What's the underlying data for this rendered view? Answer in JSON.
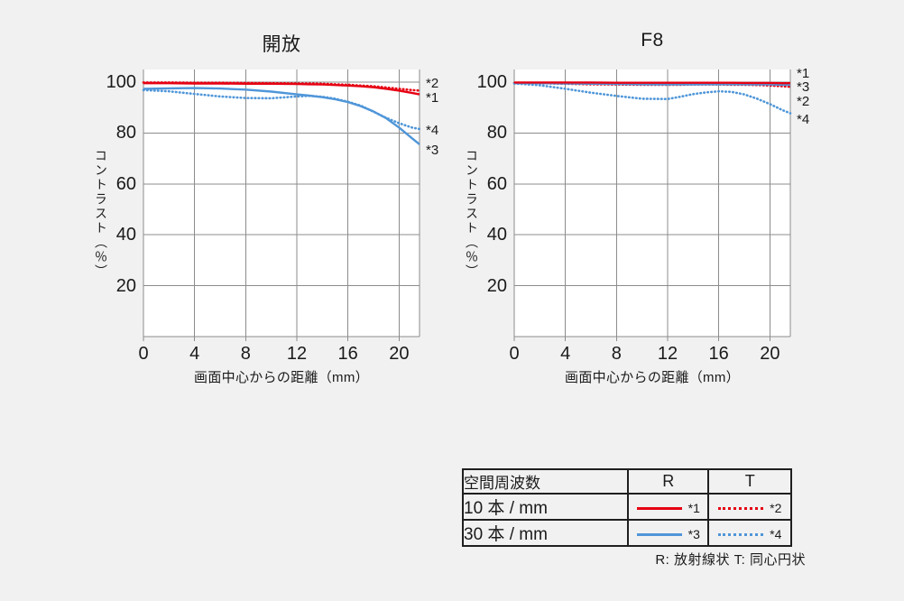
{
  "page": {
    "background": "#f1f1f1",
    "text_color": "#1a1a1a"
  },
  "colors": {
    "red": "#e60012",
    "blue": "#4f96d9",
    "grid": "#8c8c8c",
    "plot_bg": "#ffffff"
  },
  "chart_data": [
    {
      "type": "line",
      "title": "開放",
      "xlabel": "画面中心からの距離（mm）",
      "ylabel": "コントラスト（％）",
      "xlim": [
        0,
        21.6
      ],
      "ylim": [
        0,
        105
      ],
      "x_ticks": [
        0,
        4,
        8,
        12,
        16,
        20
      ],
      "y_ticks": [
        100,
        80,
        60,
        40,
        20
      ],
      "grid": true,
      "legend_position": "none",
      "x": [
        0,
        2,
        4,
        6,
        8,
        10,
        12,
        13,
        14,
        15,
        16,
        17,
        18,
        19,
        20,
        21,
        21.6
      ],
      "series": [
        {
          "label": "*1",
          "name": "R 10本/mm",
          "color": "red",
          "style": "solid",
          "values": [
            99.6,
            99.6,
            99.5,
            99.5,
            99.4,
            99.4,
            99.3,
            99.2,
            99.1,
            98.9,
            98.7,
            98.4,
            98.0,
            97.4,
            96.7,
            95.8,
            95.2
          ]
        },
        {
          "label": "*2",
          "name": "T 10本/mm",
          "color": "red",
          "style": "dotted",
          "values": [
            99.9,
            99.9,
            99.8,
            99.8,
            99.7,
            99.6,
            99.5,
            99.5,
            99.4,
            99.2,
            99.0,
            98.7,
            98.4,
            97.9,
            97.4,
            96.9,
            96.7
          ]
        },
        {
          "label": "*3",
          "name": "R 30本/mm",
          "color": "blue",
          "style": "solid",
          "values": [
            97.4,
            97.6,
            97.7,
            97.5,
            97.1,
            96.3,
            95.2,
            94.7,
            94.1,
            93.3,
            92.2,
            90.6,
            88.5,
            85.8,
            82.2,
            78.0,
            75.6
          ]
        },
        {
          "label": "*4",
          "name": "T 30本/mm",
          "color": "blue",
          "style": "dotted",
          "values": [
            96.9,
            96.4,
            95.4,
            94.4,
            93.8,
            93.7,
            94.4,
            94.6,
            94.3,
            93.5,
            92.3,
            90.8,
            88.4,
            86.0,
            83.9,
            82.2,
            81.6
          ]
        }
      ],
      "right_labels": [
        {
          "text": "*2",
          "v": 99.3
        },
        {
          "text": "*1",
          "v": 93.5
        },
        {
          "text": "*4",
          "v": 80.9
        },
        {
          "text": "*3",
          "v": 73.0
        }
      ]
    },
    {
      "type": "line",
      "title": "F8",
      "xlabel": "画面中心からの距離（mm）",
      "ylabel": "コントラスト（％）",
      "xlim": [
        0,
        21.6
      ],
      "ylim": [
        0,
        105
      ],
      "x_ticks": [
        0,
        4,
        8,
        12,
        16,
        20
      ],
      "y_ticks": [
        100,
        80,
        60,
        40,
        20
      ],
      "grid": true,
      "legend_position": "none",
      "x": [
        0,
        2,
        4,
        6,
        8,
        10,
        12,
        13,
        14,
        15,
        16,
        17,
        18,
        19,
        20,
        21,
        21.6
      ],
      "series": [
        {
          "label": "*2",
          "name": "T 10本/mm",
          "color": "red",
          "style": "dotted",
          "values": [
            99.7,
            99.6,
            99.4,
            99.2,
            99.1,
            99.0,
            99.0,
            99.0,
            99.1,
            99.1,
            99.1,
            99.0,
            99.0,
            98.9,
            98.7,
            98.4,
            98.2
          ]
        },
        {
          "label": "*4",
          "name": "T 30本/mm",
          "color": "blue",
          "style": "dotted",
          "values": [
            99.5,
            98.8,
            97.4,
            95.9,
            94.6,
            93.5,
            93.4,
            94.3,
            95.3,
            96.0,
            96.4,
            96.2,
            95.2,
            93.5,
            91.4,
            89.0,
            87.8
          ]
        },
        {
          "label": "*3",
          "name": "R 30本/mm",
          "color": "blue",
          "style": "solid",
          "values": [
            99.6,
            99.6,
            99.5,
            99.4,
            99.3,
            99.2,
            99.1,
            99.1,
            99.1,
            99.2,
            99.2,
            99.2,
            99.2,
            99.1,
            99.1,
            99.0,
            99.0
          ]
        },
        {
          "label": "*1",
          "name": "R 10本/mm",
          "color": "red",
          "style": "solid",
          "values": [
            99.9,
            99.9,
            99.9,
            99.9,
            99.8,
            99.8,
            99.8,
            99.8,
            99.8,
            99.8,
            99.8,
            99.8,
            99.7,
            99.7,
            99.7,
            99.6,
            99.6
          ]
        }
      ],
      "right_labels": [
        {
          "text": "*1",
          "v": 103.2
        },
        {
          "text": "*3",
          "v": 98.0
        },
        {
          "text": "*2",
          "v": 92.2
        },
        {
          "text": "*4",
          "v": 85.0
        }
      ]
    }
  ],
  "legend_table": {
    "header": {
      "frequency": "空間周波数",
      "r": "R",
      "t": "T"
    },
    "rows": [
      {
        "frequency": "10 本 / mm",
        "r_label": "*1",
        "r_style": "solid",
        "t_label": "*2",
        "t_style": "dotted",
        "color": "red"
      },
      {
        "frequency": "30 本 / mm",
        "r_label": "*3",
        "r_style": "solid",
        "t_label": "*4",
        "t_style": "dotted",
        "color": "blue"
      }
    ],
    "note": "R: 放射線状  T: 同心円状"
  }
}
